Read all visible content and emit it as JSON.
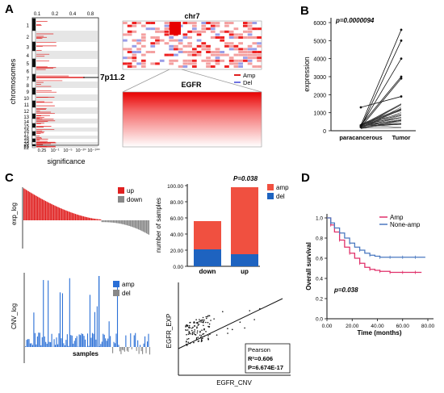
{
  "panels": {
    "A": "A",
    "B": "B",
    "C": "C",
    "D": "D"
  },
  "panelA": {
    "ylabel": "chromosomes",
    "xlabel": "significance",
    "top_ticks": [
      "0.1",
      "0.2",
      "0.4",
      "0.8"
    ],
    "bottom_ticks": [
      "0.25",
      "10⁻¹",
      "10⁻⁵",
      "10⁻²⁰",
      "10⁻¹⁰⁰"
    ],
    "chromosomes": [
      "1",
      "2",
      "3",
      "4",
      "5",
      "6",
      "7",
      "8",
      "9",
      "10",
      "11",
      "12",
      "13",
      "14",
      "15",
      "16",
      "17",
      "18",
      "19",
      "20",
      "21",
      "22"
    ],
    "locus": "7p11.2",
    "chr_title": "chr7",
    "gene": "EGFR",
    "legend": [
      {
        "name": "Amp",
        "color": "#e02020"
      },
      {
        "name": "Del",
        "color": "#6f73e0"
      }
    ]
  },
  "chart_data": [
    {
      "type": "line",
      "panel": "B",
      "ylabel": "expression",
      "categories": [
        "paracancerous",
        "Tumor"
      ],
      "ylim": [
        0,
        6000
      ],
      "yticks": [
        0,
        1000,
        2000,
        3000,
        4000,
        5000,
        6000
      ],
      "annotation": "p=0.0000094",
      "highlighted_pairs": [
        [
          300,
          5600
        ],
        [
          200,
          5000
        ],
        [
          250,
          4000
        ],
        [
          300,
          3000
        ],
        [
          200,
          2900
        ],
        [
          1300,
          1900
        ]
      ]
    },
    {
      "type": "bar",
      "panel": "C-exp",
      "ylabel": "exp_log",
      "series": [
        {
          "name": "up",
          "color": "#e02020"
        },
        {
          "name": "down",
          "color": "#888888"
        }
      ]
    },
    {
      "type": "bar",
      "panel": "C-stack",
      "ylabel": "number of samples",
      "categories": [
        "down",
        "up"
      ],
      "ylim": [
        0,
        100
      ],
      "yticks": [
        "0.00",
        "20.00",
        "40.00",
        "60.00",
        "80.00",
        "100.00"
      ],
      "annotation": "P=0.038",
      "series": [
        {
          "name": "amp",
          "color": "#f05040",
          "values": [
            35,
            83
          ]
        },
        {
          "name": "del",
          "color": "#1e63c0",
          "values": [
            21,
            15
          ]
        }
      ]
    },
    {
      "type": "bar",
      "panel": "C-cnv",
      "ylabel": "CNV_log",
      "xlabel": "samples",
      "series": [
        {
          "name": "amp",
          "color": "#2a6fd6"
        },
        {
          "name": "del",
          "color": "#888888"
        }
      ]
    },
    {
      "type": "scatter",
      "panel": "C-scatter",
      "xlabel": "EGFR_CNV",
      "ylabel": "EGFR_EXP",
      "stats": [
        "Pearson",
        "R²=0.606",
        "P=6.674E-17"
      ]
    },
    {
      "type": "line",
      "panel": "D",
      "xlabel": "Time (months)",
      "ylabel": "Overall survival",
      "xticks": [
        "0.00",
        "20.00",
        "40.00",
        "60.00",
        "80.00"
      ],
      "yticks": [
        "0.0",
        "0.2",
        "0.4",
        "0.6",
        "0.8",
        "1.0"
      ],
      "xlim": [
        0,
        80
      ],
      "ylim": [
        0,
        1
      ],
      "annotation": "p=0.038",
      "series": [
        {
          "name": "Amp",
          "color": "#e0306a",
          "x": [
            0,
            3,
            6,
            10,
            14,
            18,
            22,
            26,
            30,
            34,
            38,
            42,
            46,
            50,
            55,
            60,
            65,
            70,
            75
          ],
          "y": [
            1.0,
            0.93,
            0.86,
            0.78,
            0.71,
            0.65,
            0.6,
            0.55,
            0.51,
            0.49,
            0.48,
            0.47,
            0.47,
            0.46,
            0.46,
            0.46,
            0.46,
            0.46,
            0.46
          ]
        },
        {
          "name": "None-amp",
          "color": "#4a78c0",
          "x": [
            0,
            3,
            6,
            10,
            14,
            18,
            22,
            26,
            30,
            34,
            38,
            42,
            46,
            50,
            55,
            60,
            65,
            70,
            78
          ],
          "y": [
            1.0,
            0.95,
            0.9,
            0.85,
            0.8,
            0.75,
            0.71,
            0.68,
            0.65,
            0.63,
            0.62,
            0.61,
            0.61,
            0.61,
            0.61,
            0.61,
            0.61,
            0.61,
            0.61
          ]
        }
      ]
    }
  ]
}
